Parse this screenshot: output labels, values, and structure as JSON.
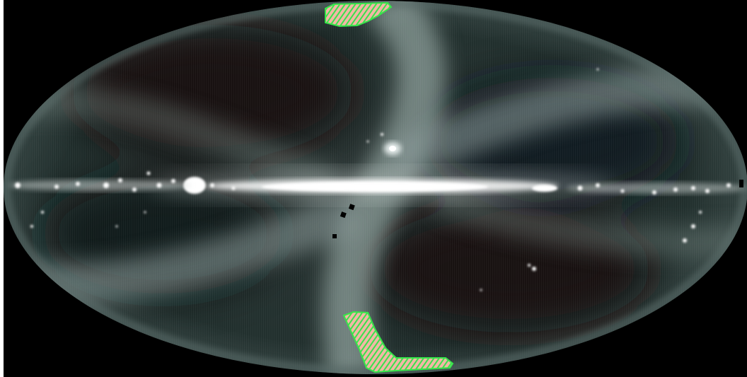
{
  "image": {
    "projection": "mollweide",
    "subject": "all-sky-far-infrared-map",
    "colors": {
      "frame": "#ffffff",
      "outer_background": "#000000",
      "sky_base": "#1f2a2a",
      "ecliptic_band": "#95a6a3",
      "dark_lobes": "#170d12",
      "galactic_plane": "#ffffff",
      "survey_stripe_fill": "#f3b8a8",
      "survey_stripe_outline": "#36e64a",
      "data_gaps": "#000000"
    },
    "features": [
      "galactic-plane",
      "ecliptic-zodiacal-band",
      "north-survey-stripe",
      "south-survey-stripe",
      "data-gaps",
      "bright-sources"
    ]
  }
}
